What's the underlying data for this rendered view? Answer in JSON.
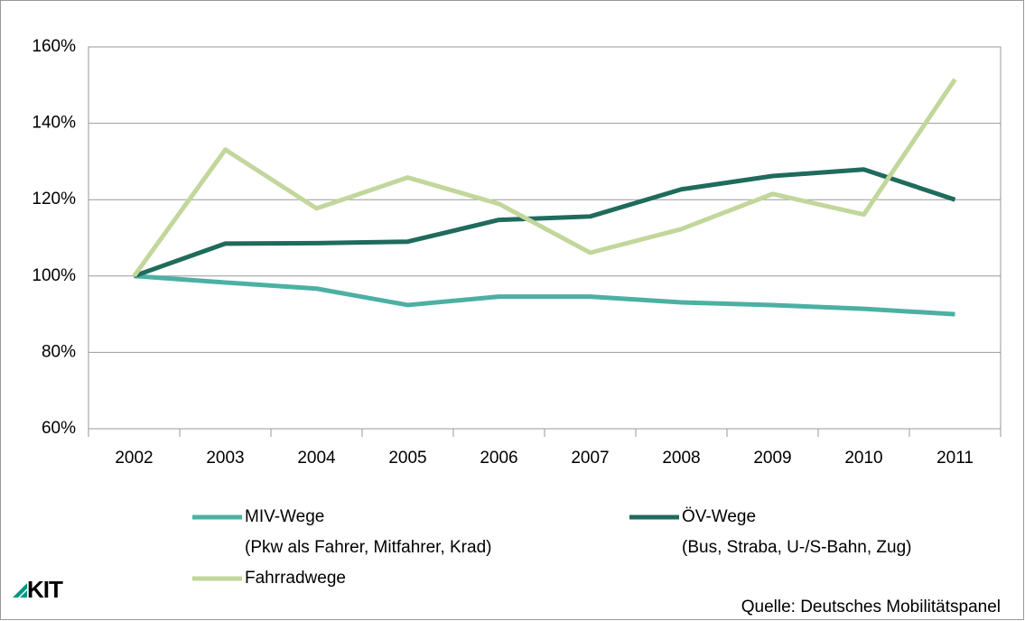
{
  "chart_data": {
    "type": "line",
    "categories": [
      "2002",
      "2003",
      "2004",
      "2005",
      "2006",
      "2007",
      "2008",
      "2009",
      "2010",
      "2011"
    ],
    "series": [
      {
        "name": "MIV-Wege",
        "description": "(Pkw als Fahrer, Mitfahrer, Krad)",
        "color": "#4cb0a3",
        "values": [
          100,
          98.3,
          96.7,
          92.4,
          94.6,
          94.6,
          93.1,
          92.4,
          91.4,
          90
        ]
      },
      {
        "name": "ÖV-Wege",
        "description": "(Bus, Straba, U-/S-Bahn, Zug)",
        "color": "#1f6b5c",
        "values": [
          100,
          108.5,
          108.6,
          109,
          114.7,
          115.6,
          122.7,
          126.2,
          127.9,
          120
        ]
      },
      {
        "name": "Fahrradwege",
        "color": "#c3d69b",
        "values": [
          100,
          133.1,
          117.7,
          125.8,
          118.9,
          106.1,
          112.3,
          121.5,
          116.1,
          151.5
        ]
      }
    ],
    "ylim": [
      60,
      160
    ],
    "yticks": [
      {
        "value": 60,
        "label": "60%"
      },
      {
        "value": 80,
        "label": "80%"
      },
      {
        "value": 100,
        "label": "100%"
      },
      {
        "value": 120,
        "label": "120%"
      },
      {
        "value": 140,
        "label": "140%"
      },
      {
        "value": 160,
        "label": "160%"
      }
    ],
    "grid": true,
    "logo": "KIT",
    "source": "Quelle: Deutsches Mobilitätspanel"
  }
}
